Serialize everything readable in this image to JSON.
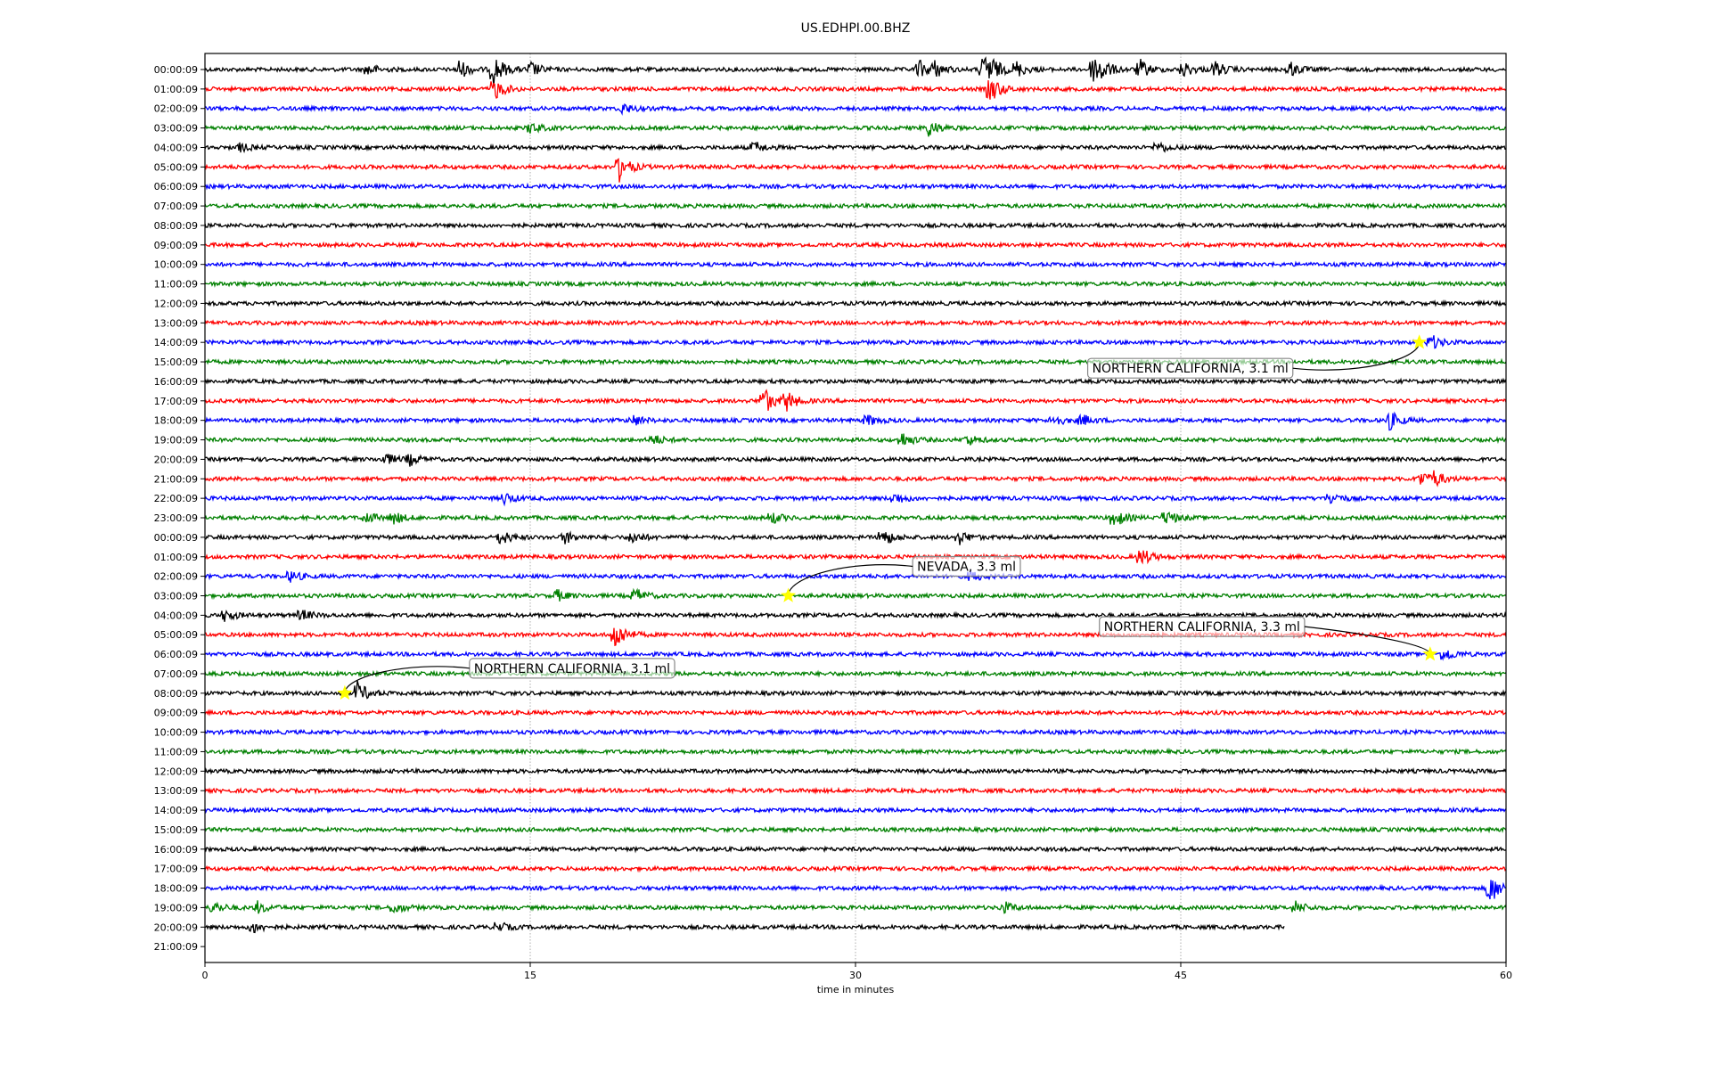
{
  "chart_data": {
    "type": "line",
    "title": "US.EDHPI.00.BHZ",
    "xlabel": "time in minutes",
    "ylabel": "",
    "xlim": [
      0,
      60
    ],
    "xticks": [
      "0",
      "15",
      "30",
      "45",
      "60"
    ],
    "xtick_values": [
      0,
      15,
      30,
      45,
      60
    ],
    "grid": "vertical dotted at x ticks",
    "row_labels": [
      "00:00:09",
      "01:00:09",
      "02:00:09",
      "03:00:09",
      "04:00:09",
      "05:00:09",
      "06:00:09",
      "07:00:09",
      "08:00:09",
      "09:00:09",
      "10:00:09",
      "11:00:09",
      "12:00:09",
      "13:00:09",
      "14:00:09",
      "15:00:09",
      "16:00:09",
      "17:00:09",
      "18:00:09",
      "19:00:09",
      "20:00:09",
      "21:00:09",
      "22:00:09",
      "23:00:09",
      "00:00:09",
      "01:00:09",
      "02:00:09",
      "03:00:09",
      "04:00:09",
      "05:00:09",
      "06:00:09",
      "07:00:09",
      "08:00:09",
      "09:00:09",
      "10:00:09",
      "11:00:09",
      "12:00:09",
      "13:00:09",
      "14:00:09",
      "15:00:09",
      "16:00:09",
      "17:00:09",
      "18:00:09",
      "19:00:09",
      "20:00:09",
      "21:00:09"
    ],
    "row_colors": [
      "#000000",
      "#ff0000",
      "#0000ff",
      "#008000"
    ],
    "last_row_with_data": 44,
    "last_trace_end_minute": 49.8,
    "events": [
      [
        0,
        7.5,
        3
      ],
      [
        0,
        11.7,
        5
      ],
      [
        0,
        13.3,
        8
      ],
      [
        0,
        15,
        4
      ],
      [
        0,
        32.9,
        5
      ],
      [
        0,
        33.6,
        4
      ],
      [
        0,
        35.8,
        5
      ],
      [
        0,
        36.1,
        7
      ],
      [
        0,
        37.4,
        4
      ],
      [
        0,
        40.9,
        7
      ],
      [
        0,
        41.2,
        5
      ],
      [
        0,
        43.1,
        5
      ],
      [
        0,
        45.1,
        4
      ],
      [
        0,
        46.6,
        4
      ],
      [
        0,
        50,
        4
      ],
      [
        1,
        13.3,
        6
      ],
      [
        1,
        36.2,
        7
      ],
      [
        2,
        19.2,
        3
      ],
      [
        3,
        15,
        3
      ],
      [
        3,
        33.3,
        5
      ],
      [
        4,
        1.6,
        2
      ],
      [
        4,
        25.3,
        3
      ],
      [
        4,
        43.9,
        3
      ],
      [
        5,
        19.1,
        7
      ],
      [
        14,
        56.5,
        4
      ],
      [
        17,
        25.7,
        8
      ],
      [
        17,
        26.8,
        5
      ],
      [
        18,
        19.7,
        3
      ],
      [
        18,
        30.5,
        3
      ],
      [
        18,
        39.1,
        3
      ],
      [
        18,
        40.4,
        3
      ],
      [
        18,
        54.6,
        5
      ],
      [
        19,
        20.6,
        3
      ],
      [
        19,
        32.1,
        4
      ],
      [
        19,
        35.1,
        3
      ],
      [
        20,
        8.3,
        3
      ],
      [
        20,
        9.4,
        3
      ],
      [
        21,
        56,
        4
      ],
      [
        21,
        56.6,
        4
      ],
      [
        22,
        13.8,
        3
      ],
      [
        22,
        31.8,
        3
      ],
      [
        22,
        51.9,
        3
      ],
      [
        23,
        7.4,
        3
      ],
      [
        23,
        8.7,
        3
      ],
      [
        23,
        26.1,
        3
      ],
      [
        23,
        41.9,
        5
      ],
      [
        23,
        44.3,
        4
      ],
      [
        24,
        13.6,
        4
      ],
      [
        24,
        16.6,
        3
      ],
      [
        24,
        19.7,
        3
      ],
      [
        24,
        31.2,
        5
      ],
      [
        24,
        34.7,
        4
      ],
      [
        25,
        43.1,
        5
      ],
      [
        26,
        3.9,
        3
      ],
      [
        26,
        35.3,
        3
      ],
      [
        27,
        16.2,
        3
      ],
      [
        27,
        19.8,
        4
      ],
      [
        28,
        0.9,
        3
      ],
      [
        28,
        4.4,
        3
      ],
      [
        29,
        18.9,
        8
      ],
      [
        30,
        57.1,
        4
      ],
      [
        32,
        7,
        6
      ],
      [
        42,
        59.2,
        9
      ],
      [
        43,
        0.4,
        3
      ],
      [
        43,
        2.4,
        3
      ],
      [
        43,
        8.7,
        3
      ],
      [
        43,
        36.8,
        3
      ],
      [
        43,
        50.3,
        3
      ],
      [
        44,
        2.2,
        3
      ],
      [
        44,
        13.4,
        3
      ]
    ],
    "annotations": [
      {
        "text": "NORTHERN CALIFORNIA, 3.1 ml",
        "row": 14,
        "minute": 56.0
      },
      {
        "text": "NEVADA, 3.3 ml",
        "row": 27,
        "minute": 26.9
      },
      {
        "text": "NORTHERN CALIFORNIA, 3.3 ml",
        "row": 30,
        "minute": 56.5
      },
      {
        "text": "NORTHERN CALIFORNIA, 3.1 ml",
        "row": 32,
        "minute": 6.45
      }
    ],
    "marker_color": "#ffff00"
  }
}
